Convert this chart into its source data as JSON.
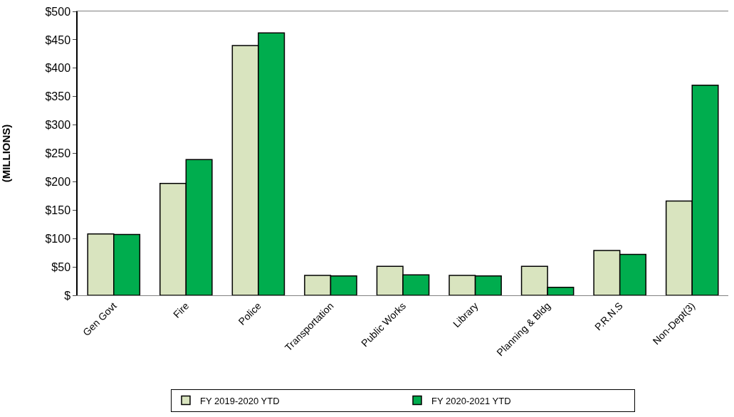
{
  "chart_data": {
    "type": "bar",
    "ylabel": "(MILLIONS)",
    "categories": [
      "Gen Govt",
      "Fire",
      "Police",
      "Transportation",
      "Public Works",
      "Library",
      "Planning & Bldg",
      "P.R.N.S",
      "Non-Dept(3)"
    ],
    "series": [
      {
        "name": "FY 2019-2020 YTD",
        "color": "#d9e4bf",
        "values": [
          108,
          197,
          440,
          35,
          51,
          35,
          51,
          79,
          166
        ]
      },
      {
        "name": "FY 2020-2021 YTD",
        "color": "#00ad4e",
        "values": [
          107,
          239,
          462,
          34,
          36,
          34,
          14,
          72,
          370
        ]
      }
    ],
    "ylim": [
      0,
      500
    ],
    "yticks": [
      {
        "value": 0,
        "label": "$"
      },
      {
        "value": 50,
        "label": "$50"
      },
      {
        "value": 100,
        "label": "$100"
      },
      {
        "value": 150,
        "label": "$150"
      },
      {
        "value": 200,
        "label": "$200"
      },
      {
        "value": 250,
        "label": "$250"
      },
      {
        "value": 300,
        "label": "$300"
      },
      {
        "value": 350,
        "label": "$350"
      },
      {
        "value": 400,
        "label": "$400"
      },
      {
        "value": 450,
        "label": "$450"
      },
      {
        "value": 500,
        "label": "$500"
      }
    ],
    "grid": false,
    "legend": "bottom"
  }
}
